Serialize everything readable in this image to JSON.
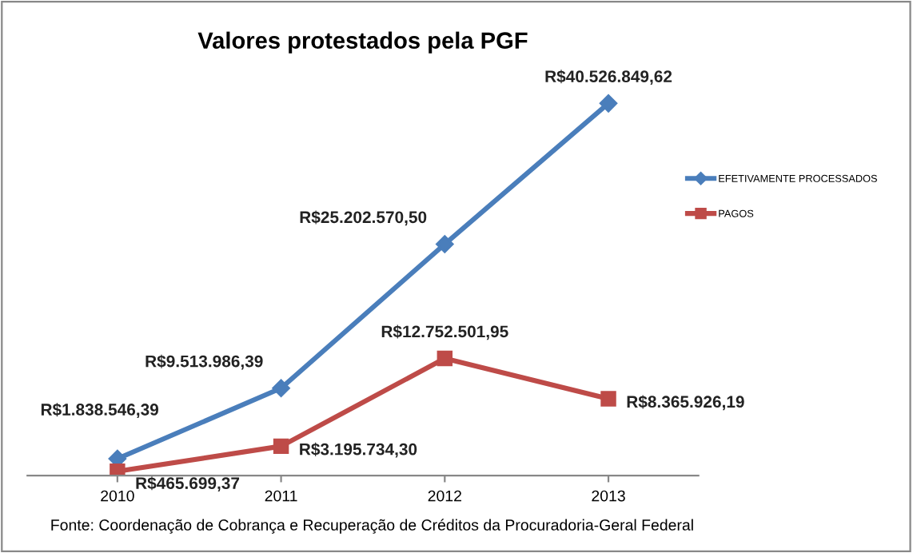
{
  "chart_data": {
    "type": "line",
    "title": "Valores protestados pela PGF",
    "categories": [
      "2010",
      "2011",
      "2012",
      "2013"
    ],
    "series": [
      {
        "name": "EFETIVAMENTE PROCESSADOS",
        "color": "#4a7ebb",
        "marker": "diamond",
        "values": [
          1838546.39,
          9513986.39,
          25202570.5,
          40526849.62
        ],
        "value_labels": [
          "R$1.838.546,39",
          "R$9.513.986,39",
          "R$25.202.570,50",
          "R$40.526.849,62"
        ]
      },
      {
        "name": "PAGOS",
        "color": "#be4b48",
        "marker": "square",
        "values": [
          465699.37,
          3195734.3,
          12752501.95,
          8365926.19
        ],
        "value_labels": [
          "R$465.699,37",
          "R$3.195.734,30",
          "R$12.752.501,95",
          "R$8.365.926,19"
        ]
      }
    ],
    "legend": "right",
    "grid": false,
    "annotations": [
      "Fonte: Coordenação de Cobrança e Recuperação de Créditos da Procuradoria-Geral Federal"
    ]
  }
}
